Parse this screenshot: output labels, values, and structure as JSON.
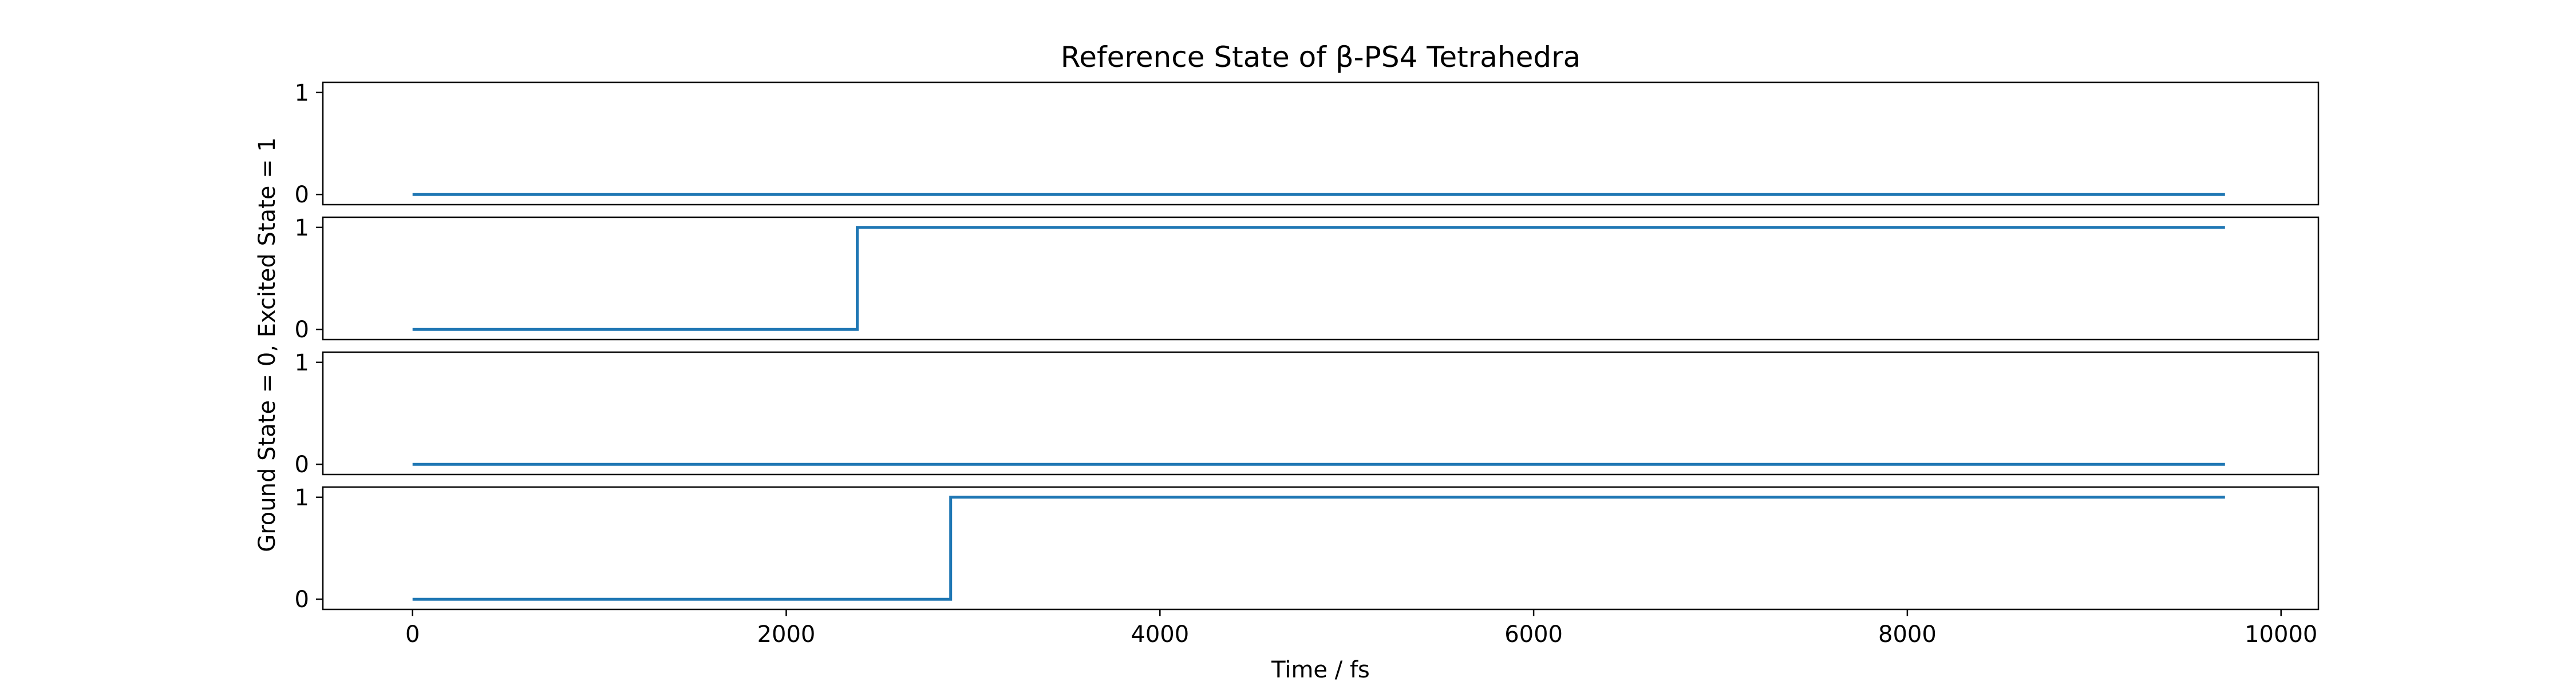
{
  "chart_data": {
    "type": "line",
    "title": "Reference State of β-PS4 Tetrahedra",
    "xlabel": "Time / fs",
    "ylabel": "Ground State = 0, Excited State = 1",
    "xlim": [
      -480,
      10200
    ],
    "ylim": [
      -0.1,
      1.1
    ],
    "x_ticks": [
      0,
      2000,
      4000,
      6000,
      8000,
      10000
    ],
    "x_tick_labels": [
      "0",
      "2000",
      "4000",
      "6000",
      "8000",
      "10000"
    ],
    "y_ticks": [
      0,
      1
    ],
    "y_tick_labels": [
      "0",
      "1"
    ],
    "line_color": "#1f77b4",
    "grid": false,
    "legend": "none",
    "layout": "4 stacked subplots sharing the x axis",
    "subplots": [
      {
        "x": [
          0,
          9700
        ],
        "y": [
          0,
          0
        ],
        "drawstyle": "steps-post"
      },
      {
        "x": [
          0,
          2380,
          9700
        ],
        "y": [
          0,
          1,
          1
        ],
        "drawstyle": "steps-post"
      },
      {
        "x": [
          0,
          9700
        ],
        "y": [
          0,
          0
        ],
        "drawstyle": "steps-post"
      },
      {
        "x": [
          0,
          2880,
          9700
        ],
        "y": [
          0,
          1,
          1
        ],
        "drawstyle": "steps-post"
      }
    ]
  }
}
